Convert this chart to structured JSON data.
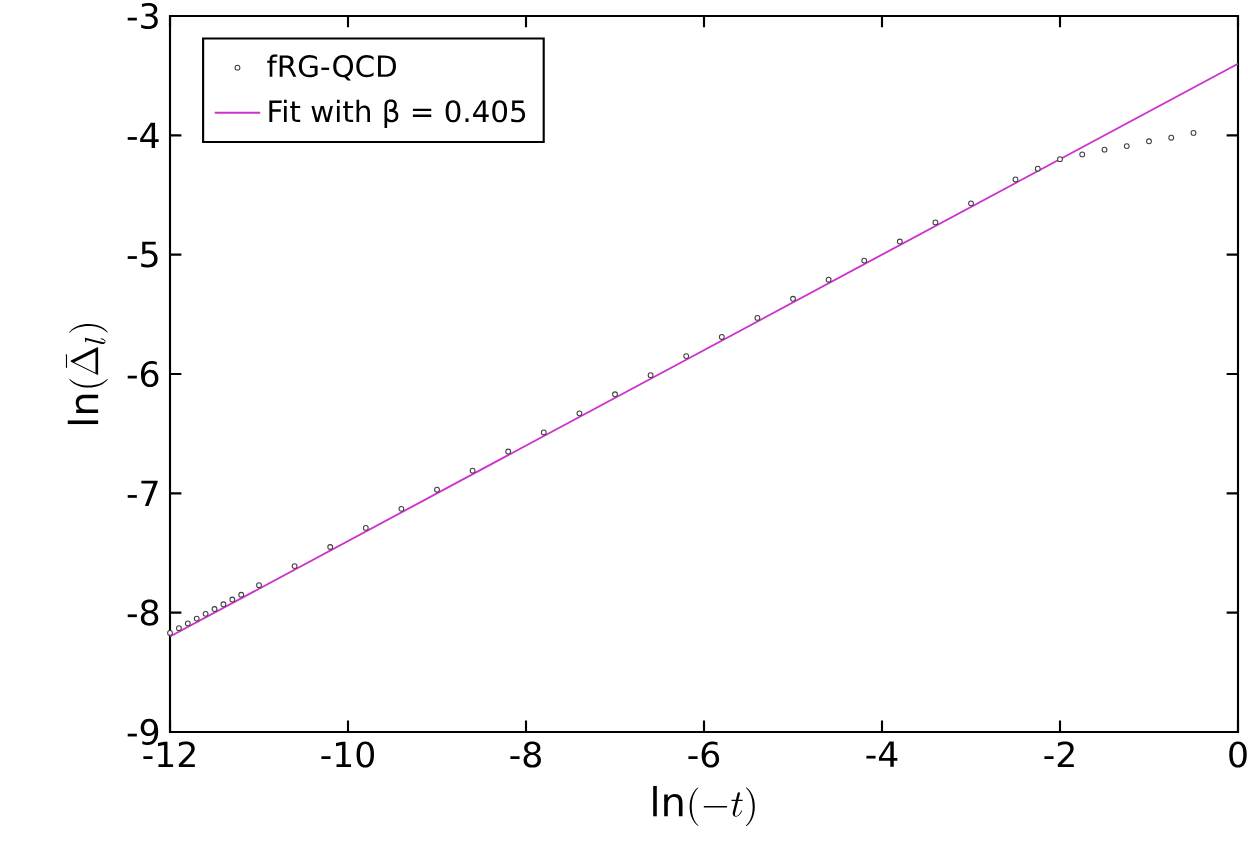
{
  "chart_data": {
    "type": "scatter",
    "xlabel": "\\ln(-t)",
    "ylabel": "\\ln(\\bar{\\Delta}_l)",
    "xlim": [
      -12,
      0
    ],
    "ylim": [
      -9,
      -3
    ],
    "xticks": [
      -12,
      -10,
      -8,
      -6,
      -4,
      -2,
      0
    ],
    "yticks": [
      -9,
      -8,
      -7,
      -6,
      -5,
      -4,
      -3
    ],
    "legend": "top left",
    "series": [
      {
        "name": "fRG-QCD",
        "marker": "circle",
        "color": "#404040",
        "x": [
          -12,
          -11.9,
          -11.8,
          -11.7,
          -11.6,
          -11.5,
          -11.4,
          -11.3,
          -11.2,
          -11,
          -10.6,
          -10.2,
          -9.8,
          -9.4,
          -9,
          -8.6,
          -8.2,
          -7.8,
          -7.4,
          -7,
          -6.6,
          -6.2,
          -5.8,
          -5.4,
          -5,
          -4.6,
          -4.2,
          -3.8,
          -3.4,
          -3,
          -2.5,
          -2.25,
          -2,
          -1.75,
          -1.5,
          -1.25,
          -1,
          -0.75,
          -0.5
        ],
        "values": [
          -8.17,
          -8.13,
          -8.09,
          -8.05,
          -8.01,
          -7.97,
          -7.93,
          -7.89,
          -7.85,
          -7.77,
          -7.61,
          -7.45,
          -7.29,
          -7.13,
          -6.97,
          -6.81,
          -6.65,
          -6.49,
          -6.33,
          -6.17,
          -6.01,
          -5.85,
          -5.69,
          -5.53,
          -5.37,
          -5.21,
          -5.05,
          -4.89,
          -4.73,
          -4.57,
          -4.37,
          -4.28,
          -4.2,
          -4.16,
          -4.12,
          -4.09,
          -4.05,
          -4.02,
          -3.98
        ]
      },
      {
        "name": "Fit with β = 0.405",
        "type": "line",
        "marker": "none",
        "color": "#cc33cc",
        "x": [
          -12,
          0
        ],
        "values": [
          -8.2,
          -3.4
        ]
      }
    ]
  }
}
